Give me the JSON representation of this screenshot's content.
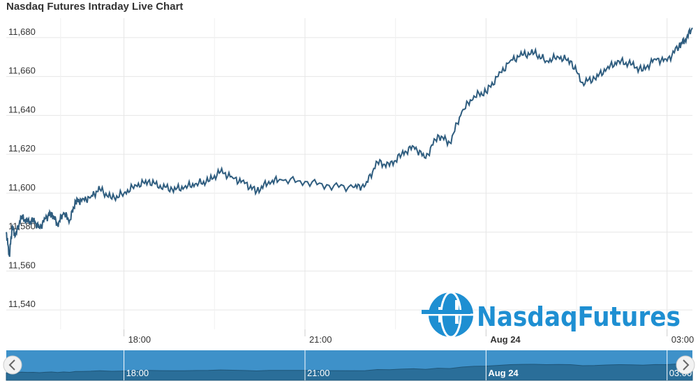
{
  "header": {
    "title": "Nasdaq Futures Intraday Live Chart"
  },
  "watermark": {
    "text": "NasdaqFutures",
    "color": "#1e8fd2"
  },
  "colors": {
    "line": "#2f5d7f",
    "grid": "#e6e6e6",
    "navigator_fill": "#3e91c9",
    "navigator_area": "#2a6e99"
  },
  "chart_data": {
    "type": "line",
    "title": "Nasdaq Futures Intraday Live Chart",
    "xlabel": "",
    "ylabel": "",
    "ylim": [
      11530,
      11690
    ],
    "xlim": [
      16.05,
      27.42
    ],
    "yticks": [
      11540,
      11560,
      11580,
      11600,
      11620,
      11640,
      11660,
      11680
    ],
    "ytick_labels": [
      "11,540",
      "11,560",
      "11,580",
      "11,600",
      "11,620",
      "11,640",
      "11,660",
      "11,680"
    ],
    "xticks": [
      18,
      21,
      24,
      27
    ],
    "xtick_labels": [
      "18:00",
      "21:00",
      "Aug 24",
      "03:00"
    ],
    "grid": true,
    "legend": "none",
    "series": [
      {
        "x": [
          16.05,
          16.1,
          16.15,
          16.2,
          16.3,
          16.4,
          16.5,
          16.6,
          16.7,
          16.8,
          16.9,
          17.0,
          17.1,
          17.2,
          17.3,
          17.45,
          17.6,
          17.8,
          18.0,
          18.2,
          18.4,
          18.6,
          18.8,
          19.0,
          19.2,
          19.4,
          19.6,
          19.8,
          20.0,
          20.2,
          20.4,
          20.6,
          21.0,
          21.4,
          21.8,
          22.0,
          22.2,
          22.4,
          22.6,
          22.8,
          23.0,
          23.2,
          23.4,
          23.6,
          23.8,
          24.0,
          24.2,
          24.4,
          24.6,
          24.8,
          25.0,
          25.2,
          25.4,
          25.6,
          25.8,
          26.0,
          26.2,
          26.4,
          26.6,
          26.8,
          27.0,
          27.2,
          27.3,
          27.42
        ],
        "y": [
          11580,
          11568,
          11583,
          11578,
          11588,
          11585,
          11586,
          11582,
          11587,
          11590,
          11584,
          11590,
          11586,
          11596,
          11596,
          11598,
          11602,
          11597,
          11600,
          11604,
          11606,
          11604,
          11602,
          11603,
          11605,
          11606,
          11611,
          11608,
          11605,
          11601,
          11606,
          11607,
          11606,
          11604,
          11603,
          11604,
          11616,
          11614,
          11620,
          11624,
          11618,
          11630,
          11626,
          11642,
          11650,
          11652,
          11660,
          11668,
          11671,
          11672,
          11668,
          11670,
          11668,
          11657,
          11659,
          11664,
          11668,
          11666,
          11663,
          11669,
          11668,
          11676,
          11679,
          11685
        ]
      }
    ]
  }
}
